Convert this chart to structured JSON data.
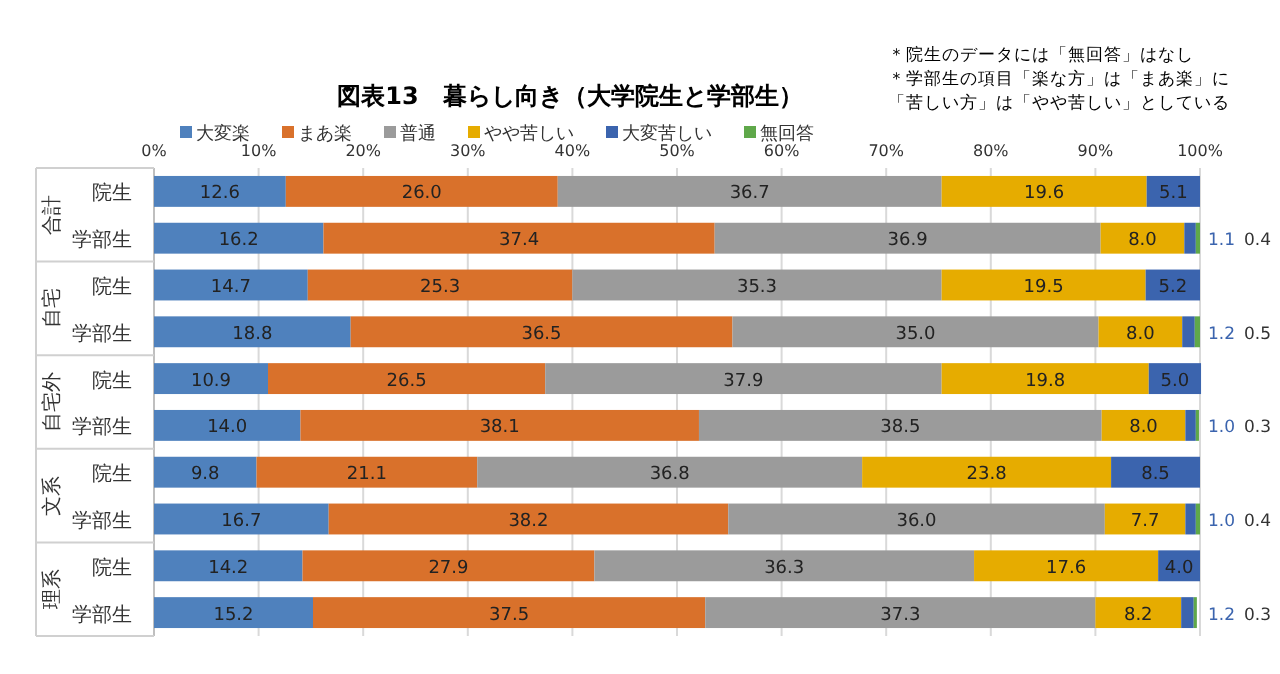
{
  "chart_data": {
    "type": "bar",
    "orientation": "horizontal",
    "stacked": true,
    "title": "図表13　暮らし向き（大学院生と学部生）",
    "categories": [
      "院生",
      "学部生",
      "院生",
      "学部生",
      "院生",
      "学部生",
      "院生",
      "学部生",
      "院生",
      "学部生"
    ],
    "series": [
      {
        "name": "大変楽",
        "color": "#4f81bd",
        "values": [
          12.6,
          16.2,
          14.7,
          18.8,
          10.9,
          14.0,
          9.8,
          16.7,
          14.2,
          15.2
        ],
        "value_labels": [
          "12.6",
          "16.2",
          "14.7",
          "18.8",
          "10.9",
          "14.0",
          "9.8",
          "16.7",
          "14.2",
          "15.2"
        ]
      },
      {
        "name": "まあ楽",
        "color": "#d9712b",
        "values": [
          26.0,
          37.4,
          25.3,
          36.5,
          26.5,
          38.1,
          21.1,
          38.2,
          27.9,
          37.5
        ],
        "value_labels": [
          "26.0",
          "37.4",
          "25.3",
          "36.5",
          "26.5",
          "38.1",
          "21.1",
          "38.2",
          "27.9",
          "37.5"
        ]
      },
      {
        "name": "普通",
        "color": "#9b9b9b",
        "values": [
          36.7,
          36.9,
          35.3,
          35.0,
          37.9,
          38.5,
          36.8,
          36.0,
          36.3,
          37.3
        ],
        "value_labels": [
          "36.7",
          "36.9",
          "35.3",
          "35.0",
          "37.9",
          "38.5",
          "36.8",
          "36.0",
          "36.3",
          "37.3"
        ]
      },
      {
        "name": "やや苦しい",
        "color": "#e6ac00",
        "values": [
          19.6,
          8.0,
          19.5,
          8.0,
          19.8,
          8.0,
          23.8,
          7.7,
          17.6,
          8.2
        ],
        "value_labels": [
          "19.6",
          "8.0",
          "19.5",
          "8.0",
          "19.8",
          "8.0",
          "23.8",
          "7.7",
          "17.6",
          "8.2"
        ]
      },
      {
        "name": "大変苦しい",
        "color": "#3b64ae",
        "values": [
          5.1,
          1.1,
          5.2,
          1.2,
          5.0,
          1.0,
          8.5,
          1.0,
          4.0,
          1.2
        ],
        "value_labels": [
          "5.1",
          "1.1",
          "5.2",
          "1.2",
          "5.0",
          "1.0",
          "8.5",
          "1.0",
          "4.0",
          "1.2"
        ]
      },
      {
        "name": "無回答",
        "color": "#5fa84a",
        "values": [
          null,
          0.4,
          null,
          0.5,
          null,
          0.3,
          null,
          0.4,
          null,
          0.3
        ],
        "value_labels": [
          null,
          "0.4",
          null,
          "0.5",
          null,
          "0.3",
          null,
          "0.4",
          null,
          "0.3"
        ]
      }
    ],
    "xlim": [
      0,
      100
    ],
    "xticks": [
      {
        "value": 0,
        "label": "0%"
      },
      {
        "value": 10,
        "label": "10%"
      },
      {
        "value": 20,
        "label": "20%"
      },
      {
        "value": 30,
        "label": "30%"
      },
      {
        "value": 40,
        "label": "40%"
      },
      {
        "value": 50,
        "label": "50%"
      },
      {
        "value": 60,
        "label": "60%"
      },
      {
        "value": 70,
        "label": "70%"
      },
      {
        "value": 80,
        "label": "80%"
      },
      {
        "value": 90,
        "label": "90%"
      },
      {
        "value": 100,
        "label": "100%"
      }
    ],
    "grid": "x",
    "legend": "top",
    "annotations": [
      "＊院生のデータには「無回答」はなし",
      "＊学部生の項目「楽な方」は「まあ楽」に",
      "「苦しい方」は「やや苦しい」としている",
      "合計",
      "自宅",
      "自宅外",
      "文系",
      "理系"
    ]
  }
}
